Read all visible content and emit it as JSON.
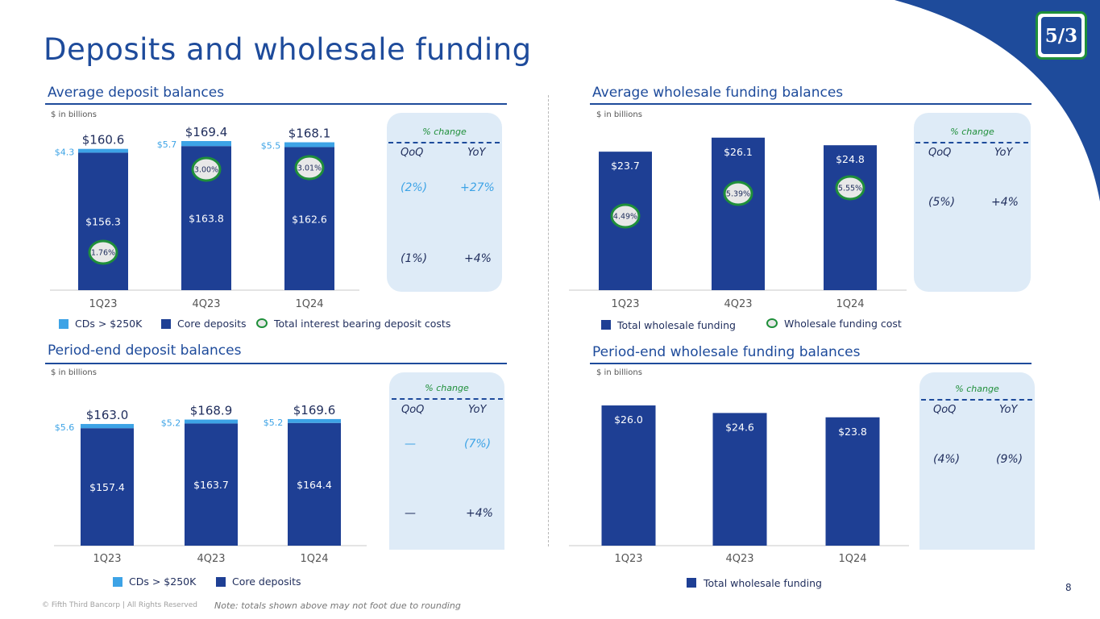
{
  "page": {
    "title": "Deposits and wholesale funding",
    "page_number": "8",
    "copyright": "© Fifth Third Bancorp | All Rights Reserved",
    "note": "Note: totals shown above may not foot due to rounding",
    "logo_text": "5/3"
  },
  "colors": {
    "navy": "#1e3f94",
    "light_blue": "#3da3e6",
    "green": "#1f8f3a",
    "title_blue": "#1e4b9b",
    "panel": "#deebf7"
  },
  "sections": {
    "avg_deposit": {
      "title": "Average deposit balances",
      "unit": "$ in billions",
      "change_label": "% change",
      "qoq_label": "QoQ",
      "yoy_label": "YoY",
      "cd_qoq": "(2%)",
      "cd_yoy": "+27%",
      "core_qoq": "(1%)",
      "core_yoy": "+4%",
      "legend": {
        "cd": "CDs > $250K",
        "core": "Core deposits",
        "rate": "Total interest bearing deposit costs"
      }
    },
    "avg_wholesale": {
      "title": "Average wholesale funding balances",
      "unit": "$ in billions",
      "change_label": "% change",
      "qoq_label": "QoQ",
      "yoy_label": "YoY",
      "qoq": "(5%)",
      "yoy": "+4%",
      "legend": {
        "total": "Total wholesale funding",
        "rate": "Wholesale funding cost"
      }
    },
    "pe_deposit": {
      "title": "Period-end deposit balances",
      "unit": "$ in billions",
      "change_label": "% change",
      "qoq_label": "QoQ",
      "yoy_label": "YoY",
      "cd_qoq": "—",
      "cd_yoy": "(7%)",
      "core_qoq": "—",
      "core_yoy": "+4%",
      "legend": {
        "cd": "CDs > $250K",
        "core": "Core deposits"
      }
    },
    "pe_wholesale": {
      "title": "Period-end wholesale funding balances",
      "unit": "$ in billions",
      "change_label": "% change",
      "qoq_label": "QoQ",
      "yoy_label": "YoY",
      "qoq": "(4%)",
      "yoy": "(9%)",
      "legend": {
        "total": "Total wholesale funding"
      }
    }
  },
  "chart_data": [
    {
      "id": "avg_deposit",
      "type": "bar",
      "stacked": true,
      "title": "Average deposit balances",
      "categories": [
        "1Q23",
        "4Q23",
        "1Q24"
      ],
      "series": [
        {
          "name": "Core deposits",
          "values": [
            156.3,
            163.8,
            162.6
          ],
          "labels": [
            "$156.3",
            "$163.8",
            "$162.6"
          ]
        },
        {
          "name": "CDs > $250K",
          "values": [
            4.3,
            5.7,
            5.5
          ],
          "labels": [
            "$4.3",
            "$5.7",
            "$5.5"
          ]
        }
      ],
      "totals": [
        "$160.6",
        "$169.4",
        "$168.1"
      ],
      "rates": {
        "name": "Total interest bearing deposit costs",
        "labels": [
          "1.76%",
          "3.00%",
          "3.01%"
        ]
      },
      "ylim": [
        0,
        175
      ]
    },
    {
      "id": "avg_wholesale",
      "type": "bar",
      "title": "Average wholesale funding balances",
      "categories": [
        "1Q23",
        "4Q23",
        "1Q24"
      ],
      "series": [
        {
          "name": "Total wholesale funding",
          "values": [
            23.7,
            26.1,
            24.8
          ],
          "labels": [
            "$23.7",
            "$26.1",
            "$24.8"
          ]
        }
      ],
      "rates": {
        "name": "Wholesale funding cost",
        "labels": [
          "4.49%",
          "5.39%",
          "5.55%"
        ]
      },
      "ylim": [
        0,
        28
      ]
    },
    {
      "id": "pe_deposit",
      "type": "bar",
      "stacked": true,
      "title": "Period-end deposit balances",
      "categories": [
        "1Q23",
        "4Q23",
        "1Q24"
      ],
      "series": [
        {
          "name": "Core deposits",
          "values": [
            157.4,
            163.7,
            164.4
          ],
          "labels": [
            "$157.4",
            "$163.7",
            "$164.4"
          ]
        },
        {
          "name": "CDs > $250K",
          "values": [
            5.6,
            5.2,
            5.2
          ],
          "labels": [
            "$5.6",
            "$5.2",
            "$5.2"
          ]
        }
      ],
      "totals": [
        "$163.0",
        "$168.9",
        "$169.6"
      ],
      "ylim": [
        0,
        176
      ]
    },
    {
      "id": "pe_wholesale",
      "type": "bar",
      "title": "Period-end wholesale funding balances",
      "categories": [
        "1Q23",
        "4Q23",
        "1Q24"
      ],
      "series": [
        {
          "name": "Total wholesale funding",
          "values": [
            26.0,
            24.6,
            23.8
          ],
          "labels": [
            "$26.0",
            "$24.6",
            "$23.8"
          ]
        }
      ],
      "ylim": [
        0,
        27.5
      ]
    }
  ]
}
